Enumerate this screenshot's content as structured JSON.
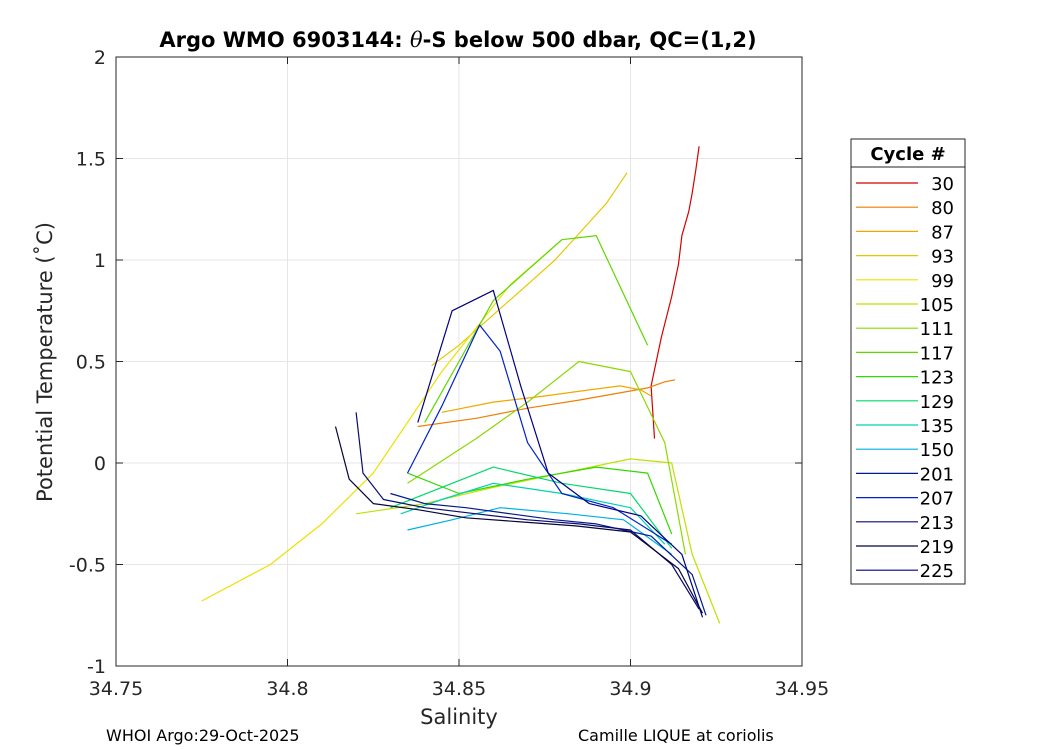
{
  "chart_data": {
    "type": "line",
    "title_parts": [
      "Argo WMO 6903144: ",
      "θ",
      "-S below 500 dbar,  QC=(1,2)"
    ],
    "xlabel": "Salinity",
    "ylabel": "Potential Temperature (˚C)",
    "xlim": [
      34.75,
      34.95
    ],
    "ylim": [
      -1,
      2
    ],
    "xticks": [
      34.75,
      34.8,
      34.85,
      34.9,
      34.95
    ],
    "xtick_labels": [
      "34.75",
      "34.8",
      "34.85",
      "34.9",
      "34.95"
    ],
    "yticks": [
      -1,
      -0.5,
      0,
      0.5,
      1,
      1.5,
      2
    ],
    "ytick_labels": [
      "-1",
      "-0.5",
      "0",
      "0.5",
      "1",
      "1.5",
      "2"
    ],
    "grid": true,
    "legend_title": "Cycle #",
    "legend_placement": "outside-right",
    "series": [
      {
        "name": "30",
        "color": "#d40000",
        "x": [
          34.907,
          34.906,
          34.909,
          34.912,
          34.914,
          34.915,
          34.917,
          34.918,
          34.919,
          34.92
        ],
        "y": [
          0.12,
          0.38,
          0.62,
          0.82,
          0.98,
          1.12,
          1.24,
          1.33,
          1.44,
          1.56
        ]
      },
      {
        "name": "80",
        "color": "#ee7f00",
        "x": [
          34.838,
          34.855,
          34.87,
          34.885,
          34.895,
          34.905,
          34.91,
          34.913
        ],
        "y": [
          0.18,
          0.22,
          0.27,
          0.31,
          0.34,
          0.37,
          0.4,
          0.41
        ]
      },
      {
        "name": "87",
        "color": "#f0a800",
        "x": [
          34.845,
          34.86,
          34.875,
          34.888,
          34.897,
          34.903,
          34.906
        ],
        "y": [
          0.25,
          0.3,
          0.33,
          0.36,
          0.38,
          0.36,
          0.33
        ]
      },
      {
        "name": "93",
        "color": "#e6c800",
        "x": [
          34.842,
          34.85,
          34.86,
          34.87,
          34.878,
          34.885,
          34.893,
          34.899
        ],
        "y": [
          0.48,
          0.58,
          0.73,
          0.88,
          1.0,
          1.13,
          1.28,
          1.43
        ]
      },
      {
        "name": "99",
        "color": "#eee000",
        "x": [
          34.775,
          34.795,
          34.81,
          34.825,
          34.845,
          34.865,
          34.88
        ],
        "y": [
          -0.68,
          -0.5,
          -0.3,
          -0.05,
          0.45,
          0.88,
          1.1
        ]
      },
      {
        "name": "105",
        "color": "#c0e000",
        "x": [
          34.82,
          34.84,
          34.86,
          34.88,
          34.9,
          34.912,
          34.918,
          34.926
        ],
        "y": [
          -0.25,
          -0.2,
          -0.12,
          -0.05,
          0.02,
          0.0,
          -0.45,
          -0.79
        ]
      },
      {
        "name": "111",
        "color": "#8cd800",
        "x": [
          34.835,
          34.855,
          34.87,
          34.885,
          34.9,
          34.91,
          34.916
        ],
        "y": [
          -0.1,
          0.12,
          0.3,
          0.5,
          0.45,
          0.1,
          -0.45
        ]
      },
      {
        "name": "117",
        "color": "#5ed800",
        "x": [
          34.84,
          34.85,
          34.86,
          34.87,
          34.88,
          34.89,
          34.905
        ],
        "y": [
          0.2,
          0.5,
          0.8,
          0.95,
          1.1,
          1.12,
          0.58
        ]
      },
      {
        "name": "123",
        "color": "#34d800",
        "x": [
          34.835,
          34.85,
          34.87,
          34.89,
          34.905,
          34.912
        ],
        "y": [
          -0.05,
          -0.15,
          -0.08,
          -0.02,
          -0.05,
          -0.35
        ]
      },
      {
        "name": "129",
        "color": "#00d86a",
        "x": [
          34.83,
          34.845,
          34.86,
          34.88,
          34.9,
          34.912
        ],
        "y": [
          -0.22,
          -0.12,
          -0.02,
          -0.1,
          -0.15,
          -0.42
        ]
      },
      {
        "name": "135",
        "color": "#00d2b0",
        "x": [
          34.833,
          34.845,
          34.86,
          34.88,
          34.9,
          34.91
        ],
        "y": [
          -0.25,
          -0.18,
          -0.1,
          -0.15,
          -0.22,
          -0.4
        ]
      },
      {
        "name": "150",
        "color": "#00b0e0",
        "x": [
          34.835,
          34.848,
          34.862,
          34.882,
          34.898,
          34.912
        ],
        "y": [
          -0.33,
          -0.28,
          -0.22,
          -0.25,
          -0.28,
          -0.45
        ]
      },
      {
        "name": "201",
        "color": "#001a8c",
        "x": [
          34.83,
          34.84,
          34.852,
          34.865,
          34.878,
          34.89,
          34.906,
          34.918,
          34.922
        ],
        "y": [
          -0.15,
          -0.2,
          -0.22,
          -0.25,
          -0.28,
          -0.3,
          -0.36,
          -0.55,
          -0.75
        ]
      },
      {
        "name": "207",
        "color": "#0022cc",
        "x": [
          34.835,
          34.845,
          34.856,
          34.862,
          34.87,
          34.88,
          34.895,
          34.912
        ],
        "y": [
          -0.05,
          0.28,
          0.68,
          0.55,
          0.1,
          -0.15,
          -0.22,
          -0.4
        ]
      },
      {
        "name": "213",
        "color": "#0a0a70",
        "x": [
          34.82,
          34.822,
          34.828,
          34.84,
          34.855,
          34.87,
          34.885,
          34.9,
          34.912,
          34.92
        ],
        "y": [
          0.25,
          -0.05,
          -0.18,
          -0.22,
          -0.25,
          -0.28,
          -0.3,
          -0.33,
          -0.5,
          -0.72
        ]
      },
      {
        "name": "219",
        "color": "#060638",
        "x": [
          34.814,
          34.818,
          34.825,
          34.838,
          34.852,
          34.868,
          34.884,
          34.9,
          34.914,
          34.921
        ],
        "y": [
          0.18,
          -0.08,
          -0.2,
          -0.23,
          -0.27,
          -0.29,
          -0.31,
          -0.34,
          -0.52,
          -0.74
        ]
      },
      {
        "name": "225",
        "color": "#000080",
        "x": [
          34.838,
          34.848,
          34.86,
          34.868,
          34.876,
          34.888,
          34.903,
          34.915,
          34.921
        ],
        "y": [
          0.2,
          0.75,
          0.85,
          0.38,
          -0.05,
          -0.2,
          -0.26,
          -0.45,
          -0.76
        ]
      }
    ]
  },
  "footer": {
    "left": "WHOI Argo:29-Oct-2025",
    "right": "Camille LIQUE at coriolis"
  }
}
